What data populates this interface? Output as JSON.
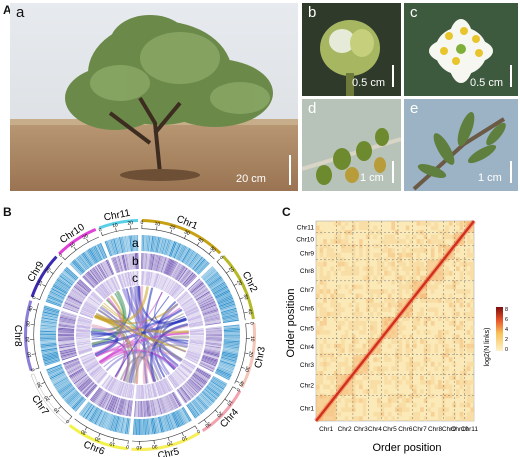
{
  "panels": {
    "A": {
      "letter": "A",
      "photos": [
        {
          "label": "a",
          "scale": "20 cm"
        },
        {
          "label": "b",
          "scale": "0.5 cm"
        },
        {
          "label": "c",
          "scale": "0.5 cm"
        },
        {
          "label": "d",
          "scale": "1 cm"
        },
        {
          "label": "e",
          "scale": "1 cm"
        }
      ]
    },
    "B": {
      "letter": "B",
      "tracks": [
        "a",
        "b",
        "c"
      ],
      "chromosomes": [
        {
          "name": "Chr1",
          "color": "#c6a114",
          "length": 55,
          "ticks": [
            "0",
            "10",
            "20",
            "30",
            "40",
            "50"
          ]
        },
        {
          "name": "Chr2",
          "color": "#b6b826",
          "length": 45,
          "ticks": [
            "0",
            "10",
            "20",
            "30",
            "40"
          ]
        },
        {
          "name": "Chr3",
          "color": "#f4c6b8",
          "length": 42,
          "ticks": [
            "0",
            "10",
            "20",
            "30",
            "40"
          ]
        },
        {
          "name": "Chr4",
          "color": "#f2a3b0",
          "length": 35,
          "ticks": [
            "0",
            "10",
            "20",
            "30"
          ]
        },
        {
          "name": "Chr5",
          "color": "#f6ee5a",
          "length": 45,
          "ticks": [
            "0",
            "10",
            "20",
            "30",
            "40"
          ]
        },
        {
          "name": "Chr6",
          "color": "#f3f24a",
          "length": 40,
          "ticks": [
            "0",
            "10",
            "20",
            "30"
          ]
        },
        {
          "name": "Chr7",
          "color": "#ffffff",
          "length": 38,
          "ticks": [
            "0",
            "10",
            "20",
            "30"
          ]
        },
        {
          "name": "Chr8",
          "color": "#8a7fd6",
          "length": 45,
          "ticks": [
            "0",
            "10",
            "20",
            "30",
            "40"
          ]
        },
        {
          "name": "Chr9",
          "color": "#3a2bb0",
          "length": 30,
          "ticks": [
            "0",
            "10",
            "20"
          ]
        },
        {
          "name": "Chr10",
          "color": "#e040d8",
          "length": 28,
          "ticks": [
            "0",
            "10",
            "20"
          ]
        },
        {
          "name": "Chr11",
          "color": "#5ad0e6",
          "length": 25,
          "ticks": [
            "0",
            "10",
            "20"
          ]
        }
      ],
      "link_colors": [
        "#1f2bb8",
        "#c8a023",
        "#3b8f5a",
        "#7a6fd0",
        "#e19ab8",
        "#8a8a8a",
        "#d24fd1"
      ]
    },
    "C": {
      "letter": "C",
      "xlabel": "Order position",
      "ylabel": "Order position",
      "legend_title": "log2(N links)",
      "legend_ticks": [
        "8",
        "6",
        "4",
        "2",
        "0"
      ],
      "x_ticks": [
        "Chr1",
        "Chr2",
        "Chr3",
        "Chr4",
        "Chr5",
        "Chr6",
        "Chr7",
        "Chr8",
        "Chr9",
        "Chr10",
        "Chr11"
      ],
      "y_ticks": [
        "Chr1",
        "Chr2",
        "Chr3",
        "Chr4",
        "Chr5",
        "Chr6",
        "Chr7",
        "Chr8",
        "Chr9",
        "Chr10",
        "Chr11"
      ],
      "chr_lengths": [
        55,
        45,
        42,
        35,
        45,
        40,
        38,
        45,
        30,
        28,
        25
      ]
    }
  },
  "chart_data": {
    "type": "heatmap",
    "title": "",
    "xlabel": "Order position",
    "ylabel": "Order position",
    "categories": [
      "Chr1",
      "Chr2",
      "Chr3",
      "Chr4",
      "Chr5",
      "Chr6",
      "Chr7",
      "Chr8",
      "Chr9",
      "Chr10",
      "Chr11"
    ],
    "colorbar": {
      "label": "log2(N links)",
      "range": [
        0,
        8
      ],
      "ticks": [
        0,
        2,
        4,
        6,
        8
      ]
    },
    "pattern": "strong diagonal (intra-chromosomal contacts, value ≈ 8), weak off-diagonal background (≈ 1–2)",
    "grid": true,
    "legend_position": "right"
  }
}
